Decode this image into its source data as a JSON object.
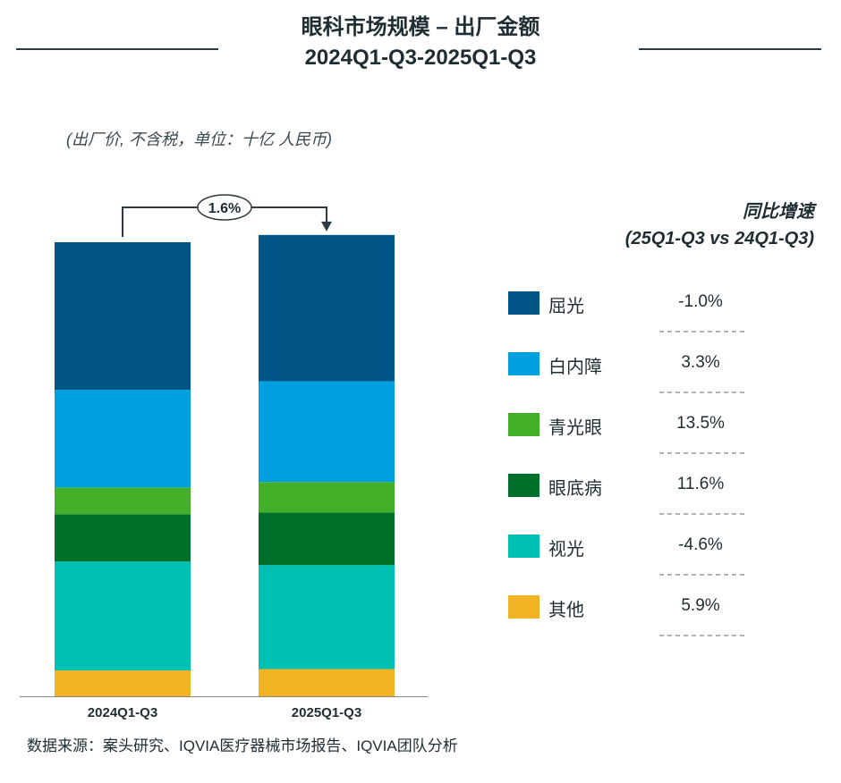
{
  "title_line1": "眼科市场规模 – 出厂金额",
  "title_line2": "2024Q1-Q3-2025Q1-Q3",
  "unit_note": "(出厂价, 不含税，单位：十亿 人民币)",
  "growth_header_line1": "同比增速",
  "growth_header_line2": "(25Q1-Q3 vs 24Q1-Q3)",
  "source": "数据来源：案头研究、IQVIA医疗器械市场报告、IQVIA团队分析",
  "chart_data": {
    "type": "bar",
    "stacked": true,
    "categories": [
      "2024Q1-Q3",
      "2025Q1-Q3"
    ],
    "total_growth_label": "1.6%",
    "series": [
      {
        "name": "其他",
        "color": "#F0B323",
        "values": [
          5.7,
          6.0
        ],
        "growth": "5.9%"
      },
      {
        "name": "视光",
        "color": "#00BFB3",
        "values": [
          24.0,
          22.9
        ],
        "growth": "-4.6%"
      },
      {
        "name": "眼底病",
        "color": "#006F2A",
        "values": [
          10.4,
          11.6
        ],
        "growth": "11.6%"
      },
      {
        "name": "青光眼",
        "color": "#44B02A",
        "values": [
          5.9,
          6.7
        ],
        "growth": "13.5%"
      },
      {
        "name": "白内障",
        "color": "#00A0E0",
        "values": [
          21.5,
          22.2
        ],
        "growth": "3.3%"
      },
      {
        "name": "屈光",
        "color": "#005587",
        "values": [
          32.5,
          32.2
        ],
        "growth": "-1.0%"
      }
    ],
    "legend_placement": "right",
    "grid": false,
    "y_axis_shown": false
  }
}
